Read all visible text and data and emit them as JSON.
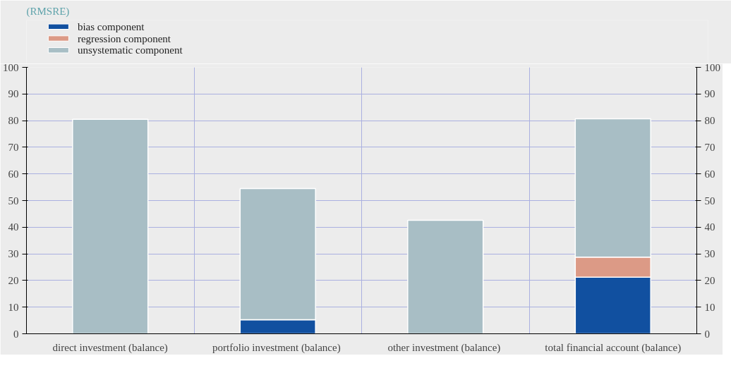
{
  "chart_data": {
    "type": "bar",
    "subtitle": "(RMSRE)",
    "stacked": true,
    "categories": [
      "direct investment (balance)",
      "portfolio investment  (balance)",
      "other investment  (balance)",
      "total financial account (balance)"
    ],
    "series": [
      {
        "name": "bias component",
        "color": "#1150a0",
        "values": [
          0,
          5.3,
          0,
          21.2
        ]
      },
      {
        "name": "regression component",
        "color": "#dc9a86",
        "values": [
          0,
          0,
          0,
          7.6
        ]
      },
      {
        "name": "unsystematic component",
        "color": "#a8bec5",
        "values": [
          80.5,
          49.2,
          42.6,
          51.9
        ]
      }
    ],
    "ylim": [
      0,
      100
    ],
    "yticks": [
      0,
      10,
      20,
      30,
      40,
      50,
      60,
      70,
      80,
      90,
      100
    ],
    "y2lim": [
      0,
      100
    ],
    "y2ticks": [
      0,
      10,
      20,
      30,
      40,
      50,
      60,
      70,
      80,
      90,
      100
    ],
    "grid": true,
    "legend": "top left"
  }
}
